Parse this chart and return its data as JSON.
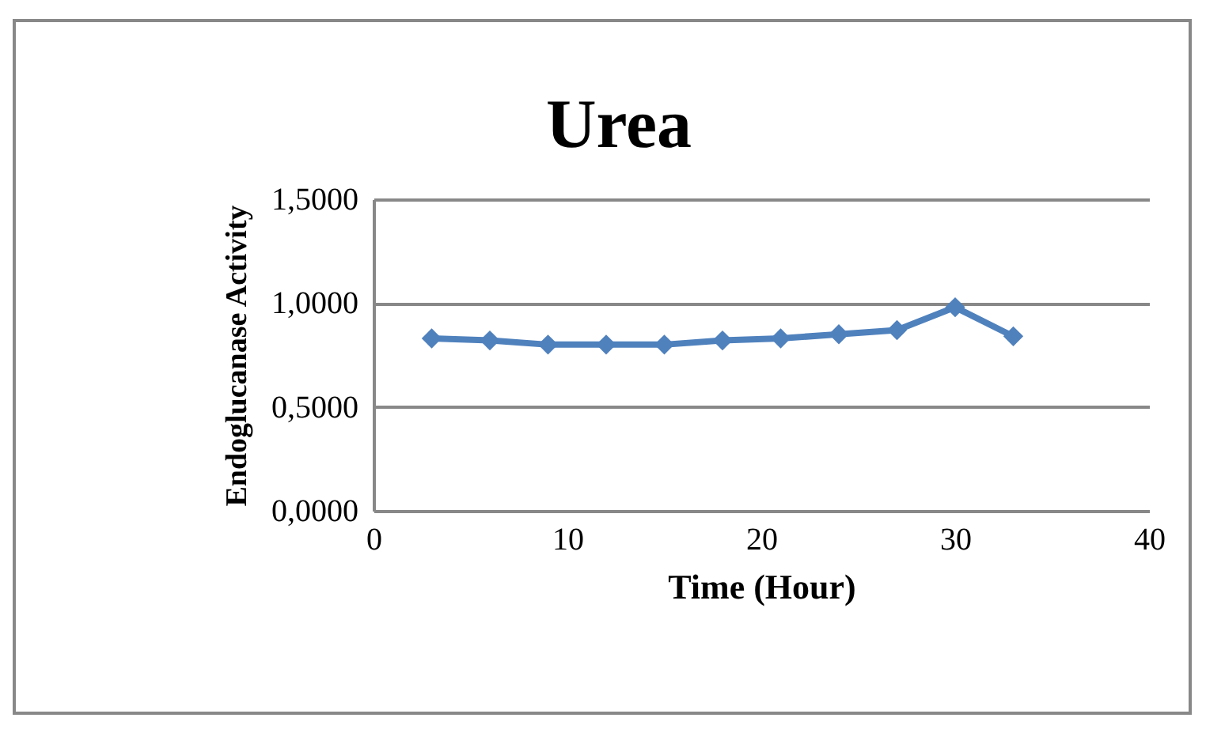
{
  "chart_data": {
    "type": "line",
    "title": "Urea",
    "xlabel": "Time (Hour)",
    "ylabel": "Endoglucanase Activity",
    "x": [
      3,
      6,
      9,
      12,
      15,
      18,
      21,
      24,
      27,
      30,
      33
    ],
    "series": [
      {
        "color": "#4f81bd",
        "values": [
          0.83,
          0.82,
          0.8,
          0.8,
          0.8,
          0.82,
          0.83,
          0.85,
          0.87,
          0.98,
          0.84
        ]
      }
    ],
    "xlim": [
      0,
      40
    ],
    "xticks": [
      0,
      10,
      20,
      30,
      40
    ],
    "ylim": [
      0,
      1.5
    ],
    "yticks": [
      {
        "value": 0,
        "label": "0,0000"
      },
      {
        "value": 0.5,
        "label": "0,5000"
      },
      {
        "value": 1,
        "label": "1,0000"
      },
      {
        "value": 1.5,
        "label": "1,5000"
      }
    ],
    "grid": "y",
    "marker": "diamond",
    "legend": false
  }
}
